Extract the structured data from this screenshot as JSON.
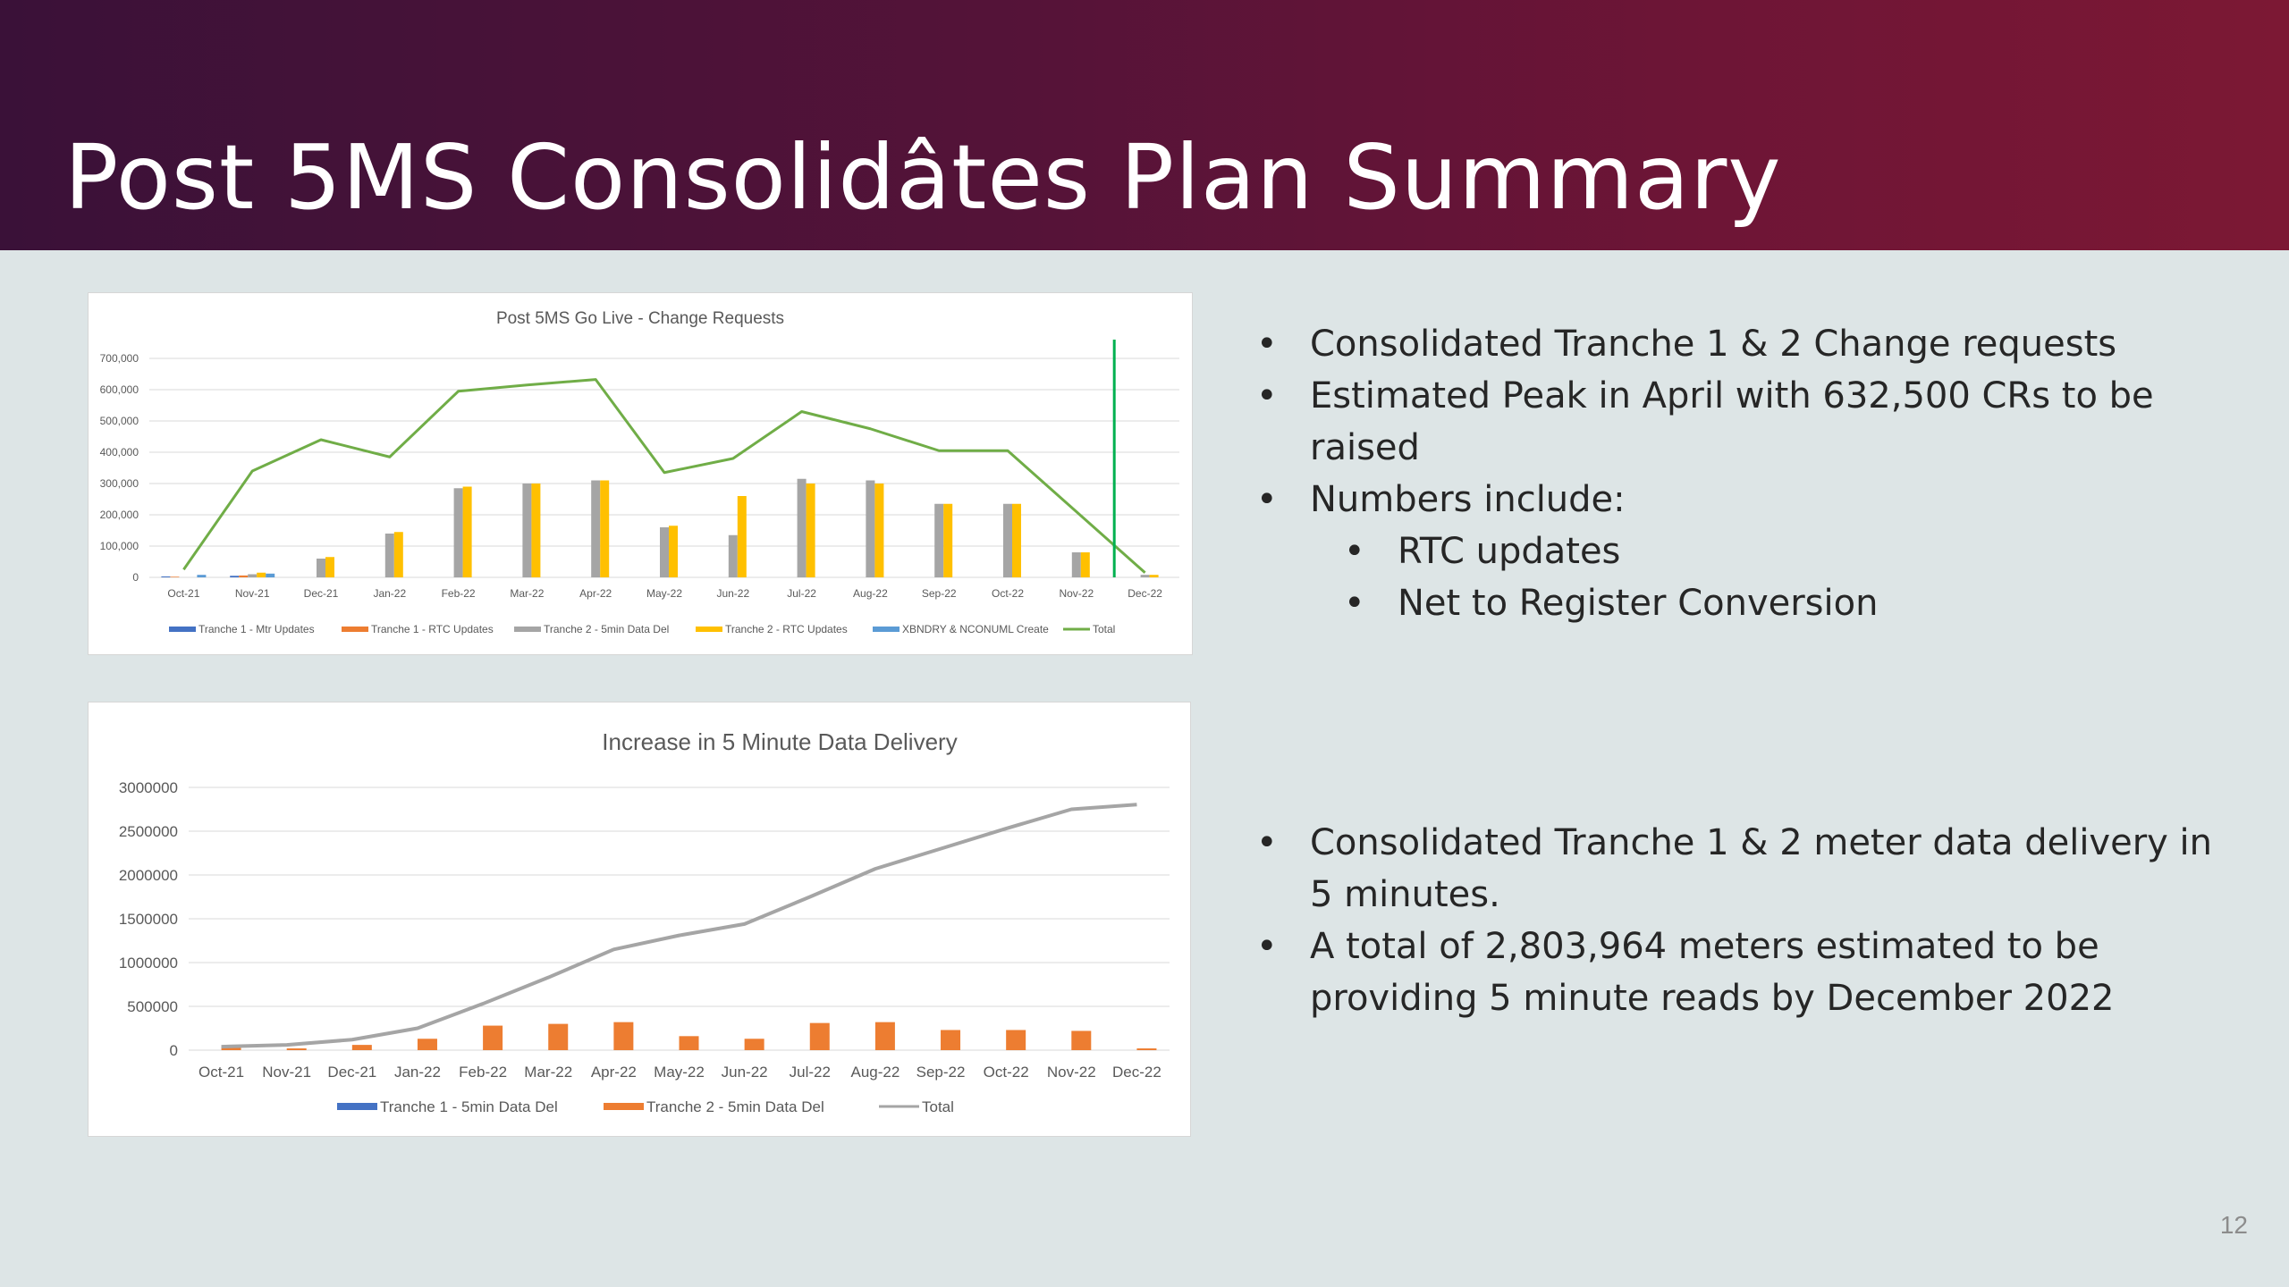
{
  "slide": {
    "title": "Post 5MS Consolidâtes Plan Summary",
    "page_number": "12",
    "colors": {
      "banner_start": "#3a1138",
      "banner_end": "#7c1834",
      "background": "#dde5e6"
    }
  },
  "bullets_top": [
    {
      "text": "Consolidated Tranche 1 & 2 Change requests",
      "level": 1
    },
    {
      "text": "Estimated Peak in April with 632,500 CRs to be",
      "level": 1
    },
    {
      "text": "raised",
      "level": 1,
      "continuation": true
    },
    {
      "text": "Numbers include:",
      "level": 1
    },
    {
      "text": "RTC updates",
      "level": 2
    },
    {
      "text": "Net to Register Conversion",
      "level": 2
    }
  ],
  "bullets_bottom": [
    {
      "text": "Consolidated Tranche 1 & 2 meter data delivery in",
      "level": 1
    },
    {
      "text": "5 minutes.",
      "level": 1,
      "continuation": true
    },
    {
      "text": "A total of 2,803,964 meters estimated to be",
      "level": 1
    },
    {
      "text": "providing 5 minute reads by December 2022",
      "level": 1,
      "continuation": true
    }
  ],
  "chart_data": [
    {
      "type": "bar",
      "title": "Post 5MS Go Live - Change Requests",
      "categories": [
        "Oct-21",
        "Nov-21",
        "Dec-21",
        "Jan-22",
        "Feb-22",
        "Mar-22",
        "Apr-22",
        "May-22",
        "Jun-22",
        "Jul-22",
        "Aug-22",
        "Sep-22",
        "Oct-22",
        "Nov-22",
        "Dec-22"
      ],
      "ylim": [
        0,
        700000
      ],
      "yticks": [
        0,
        100000,
        200000,
        300000,
        400000,
        500000,
        600000,
        700000
      ],
      "ytick_labels": [
        "0",
        "100,000",
        "200,000",
        "300,000",
        "400,000",
        "500,000",
        "600,000",
        "700,000"
      ],
      "grid": true,
      "legend_position": "bottom",
      "series": [
        {
          "name": "Tranche 1 - Mtr Updates",
          "kind": "bar",
          "color": "#4472c4",
          "values": [
            3000,
            5000,
            0,
            0,
            0,
            0,
            0,
            0,
            0,
            0,
            0,
            0,
            0,
            0,
            0
          ]
        },
        {
          "name": "Tranche 1 - RTC Updates",
          "kind": "bar",
          "color": "#ed7d31",
          "values": [
            2000,
            6000,
            0,
            0,
            0,
            0,
            0,
            0,
            0,
            0,
            0,
            0,
            0,
            0,
            0
          ]
        },
        {
          "name": "Tranche 2 - 5min Data Del",
          "kind": "bar",
          "color": "#a5a5a5",
          "values": [
            0,
            10000,
            60000,
            140000,
            285000,
            300000,
            310000,
            160000,
            135000,
            315000,
            310000,
            235000,
            235000,
            80000,
            8000
          ]
        },
        {
          "name": "Tranche 2 - RTC Updates",
          "kind": "bar",
          "color": "#ffc000",
          "values": [
            0,
            15000,
            65000,
            145000,
            290000,
            300000,
            310000,
            165000,
            260000,
            300000,
            300000,
            235000,
            235000,
            80000,
            8000
          ]
        },
        {
          "name": "XBNDRY & NCONUML Create",
          "kind": "bar",
          "color": "#5b9bd5",
          "values": [
            8000,
            12000,
            0,
            0,
            0,
            0,
            0,
            0,
            0,
            0,
            0,
            0,
            0,
            0,
            0
          ]
        },
        {
          "name": "Total",
          "kind": "line",
          "color": "#70ad47",
          "values": [
            25000,
            340000,
            440000,
            385000,
            595000,
            615000,
            632500,
            335000,
            380000,
            530000,
            475000,
            405000,
            405000,
            210000,
            15000
          ]
        }
      ],
      "annotation": {
        "type": "vertical-line",
        "color": "#00b050",
        "at_category": "Dec-22",
        "from_value": 0,
        "to_value": 760000
      }
    },
    {
      "type": "bar",
      "title": "Increase in 5 Minute Data Delivery",
      "categories": [
        "Oct-21",
        "Nov-21",
        "Dec-21",
        "Jan-22",
        "Feb-22",
        "Mar-22",
        "Apr-22",
        "May-22",
        "Jun-22",
        "Jul-22",
        "Aug-22",
        "Sep-22",
        "Oct-22",
        "Nov-22",
        "Dec-22"
      ],
      "ylim": [
        0,
        3000000
      ],
      "yticks": [
        0,
        500000,
        1000000,
        1500000,
        2000000,
        2500000,
        3000000
      ],
      "ytick_labels": [
        "0",
        "500000",
        "1000000",
        "1500000",
        "2000000",
        "2500000",
        "3000000"
      ],
      "grid": true,
      "legend_position": "bottom",
      "series": [
        {
          "name": "Tranche 1 - 5min Data Del",
          "kind": "bar",
          "color": "#4472c4",
          "values": [
            0,
            0,
            0,
            0,
            0,
            0,
            0,
            0,
            0,
            0,
            0,
            0,
            0,
            0,
            0
          ]
        },
        {
          "name": "Tranche 2 - 5min Data Del",
          "kind": "bar",
          "color": "#ed7d31",
          "values": [
            40000,
            20000,
            60000,
            130000,
            280000,
            300000,
            320000,
            160000,
            130000,
            310000,
            320000,
            230000,
            230000,
            220000,
            20000
          ]
        },
        {
          "name": "Total",
          "kind": "line",
          "color": "#a5a5a5",
          "values": [
            40000,
            60000,
            120000,
            250000,
            530000,
            830000,
            1150000,
            1310000,
            1440000,
            1750000,
            2070000,
            2300000,
            2530000,
            2750000,
            2803964
          ]
        }
      ]
    }
  ]
}
